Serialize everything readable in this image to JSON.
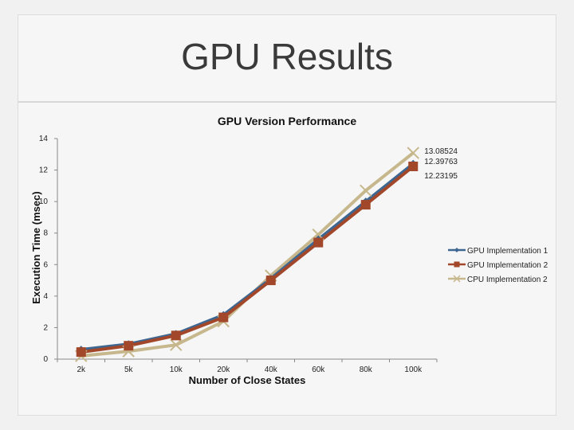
{
  "slide": {
    "title": "GPU Results"
  },
  "colors": {
    "gpu1": "#3d6691",
    "gpu2": "#a2472a",
    "cpu2": "#c7b78c",
    "axis": "#888888"
  },
  "chart_data": {
    "type": "line",
    "title": "GPU Version Performance",
    "xlabel": "Number of Close States",
    "ylabel": "Execution Time (msec)",
    "categories": [
      "2k",
      "5k",
      "10k",
      "20k",
      "40k",
      "60k",
      "80k",
      "100k"
    ],
    "ylim": [
      0,
      14
    ],
    "yticks": [
      0,
      2,
      4,
      6,
      8,
      10,
      12,
      14
    ],
    "grid": false,
    "legend": "right",
    "series": [
      {
        "name": "GPU Implementation 1",
        "marker": "diamond",
        "color_key": "gpu1",
        "values": [
          0.6,
          0.95,
          1.6,
          2.8,
          5.1,
          7.6,
          10.0,
          12.39763
        ]
      },
      {
        "name": "GPU Implementation 2",
        "marker": "square",
        "color_key": "gpu2",
        "values": [
          0.45,
          0.85,
          1.5,
          2.65,
          5.0,
          7.4,
          9.8,
          12.23195
        ]
      },
      {
        "name": "CPU Implementation 2",
        "marker": "x",
        "color_key": "cpu2",
        "values": [
          0.2,
          0.5,
          0.9,
          2.4,
          5.3,
          7.9,
          10.7,
          13.08524
        ]
      }
    ],
    "data_labels": [
      "13.08524",
      "12.39763",
      "12.23195"
    ]
  }
}
